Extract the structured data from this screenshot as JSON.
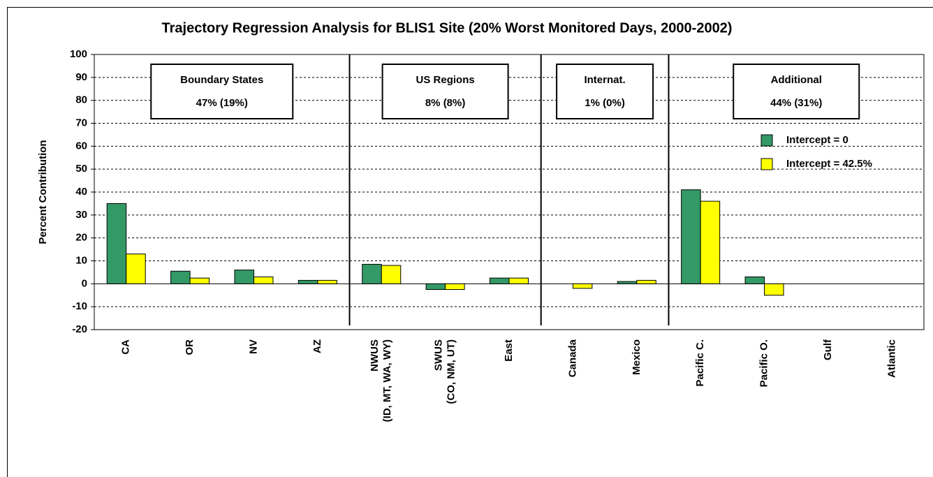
{
  "chart_data": {
    "type": "bar",
    "title": "Trajectory Regression Analysis for BLIS1 Site (20% Worst Monitored Days, 2000-2002)",
    "y_label": "Percent Contribution",
    "categories": [
      "CA",
      "OR",
      "NV",
      "AZ",
      "NWUS\n(ID, MT, WA, WY)",
      "SWUS\n(CO, NM, UT)",
      "East",
      "Canada",
      "Mexico",
      "Pacific C.",
      "Pacific O.",
      "Gulf",
      "Atlantic"
    ],
    "series": [
      {
        "name": "Intercept = 0",
        "color": "#339966",
        "values": [
          35,
          5.5,
          6,
          1.5,
          8.5,
          -2.5,
          2.5,
          0,
          1,
          41,
          3,
          0,
          0
        ]
      },
      {
        "name": "Intercept = 42.5%",
        "color": "#ffff00",
        "values": [
          13,
          2.5,
          3,
          1.5,
          8,
          -2.5,
          2.5,
          -2,
          1.5,
          36,
          -5,
          0,
          0
        ]
      }
    ],
    "groups": [
      {
        "title": "Boundary States",
        "label": "47% (19%)"
      },
      {
        "title": "US Regions",
        "label": "8% (8%)"
      },
      {
        "title": "Internat.",
        "label": "1% (0%)"
      },
      {
        "title": "Additional",
        "label": "44% (31%)"
      }
    ],
    "ylim": [
      -20,
      100
    ],
    "yticks": [
      -20,
      -10,
      0,
      10,
      20,
      30,
      40,
      50,
      60,
      70,
      80,
      90,
      100
    ],
    "grid": true
  }
}
